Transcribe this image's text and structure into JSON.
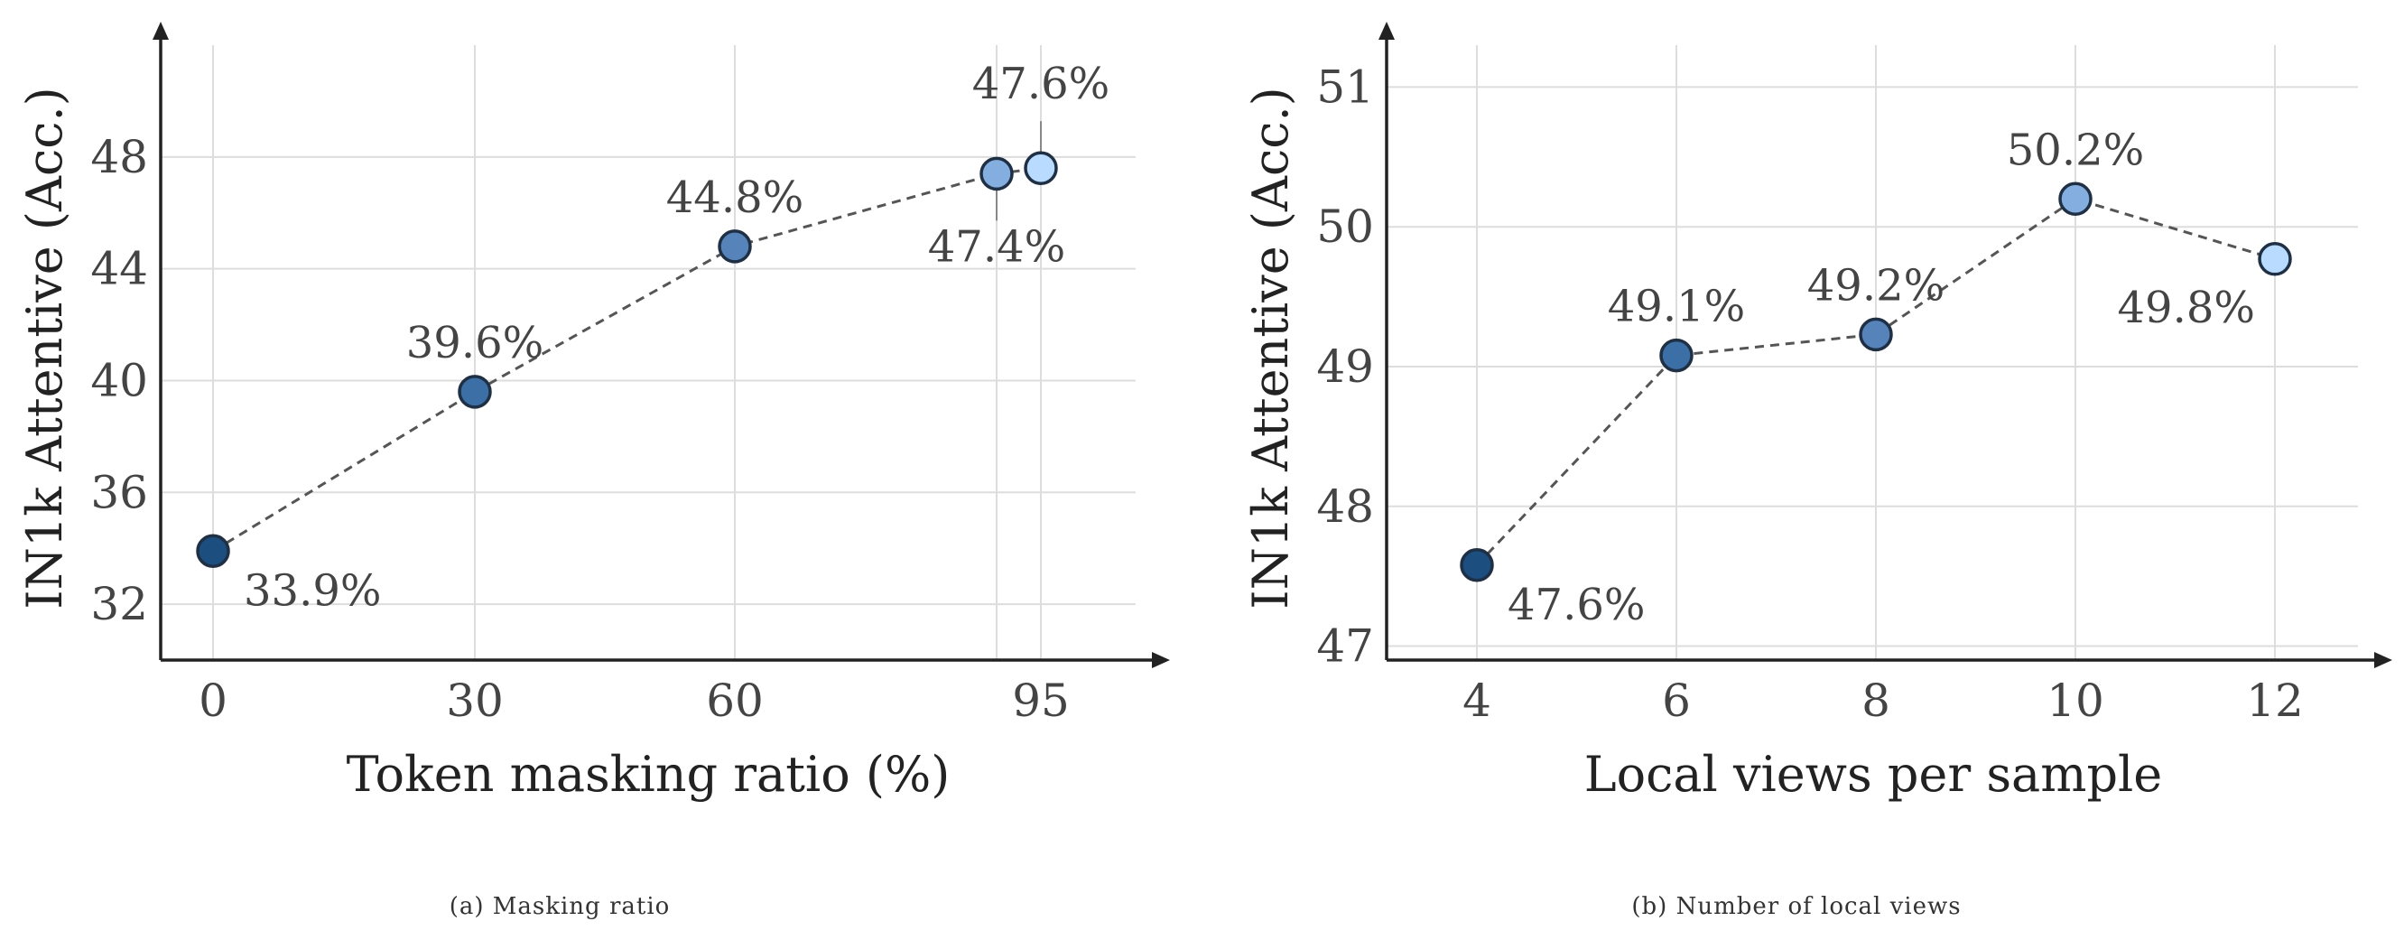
{
  "chart_data": [
    {
      "type": "scatter",
      "caption": "(a) Masking ratio",
      "xlabel": "Token masking ratio (%)",
      "ylabel": "IN1k Attentive (Acc.)",
      "ylim": [
        30,
        52
      ],
      "yticks": [
        "32",
        "36",
        "40",
        "44",
        "48"
      ],
      "grid": true,
      "connected": true,
      "points": [
        {
          "x": 0,
          "y": 33.9,
          "label": "33.9%",
          "color": "#1c4e7f",
          "label_pos": "below-right"
        },
        {
          "x": 30,
          "y": 39.6,
          "label": "39.6%",
          "color": "#3b6fa5",
          "label_pos": "above"
        },
        {
          "x": 60,
          "y": 44.8,
          "label": "44.8%",
          "color": "#5683ba",
          "label_pos": "above"
        },
        {
          "x": 90,
          "y": 47.4,
          "label": "47.4%",
          "color": "#84aee0",
          "label_pos": "below-leader"
        },
        {
          "x": 95,
          "y": 47.6,
          "label": "47.6%",
          "color": "#b9dbff",
          "label_pos": "above-leader"
        }
      ],
      "xticks": [
        {
          "value": 0,
          "label": "0"
        },
        {
          "value": 30,
          "label": "30"
        },
        {
          "value": 60,
          "label": "60"
        },
        {
          "value": 95,
          "label": "95"
        }
      ]
    },
    {
      "type": "scatter",
      "caption": "(b) Number of local views",
      "xlabel": "Local views per sample",
      "ylabel": "IN1k Attentive (Acc.)",
      "ylim": [
        46.9,
        51.3
      ],
      "yticks": [
        "47",
        "48",
        "49",
        "50",
        "51"
      ],
      "grid": true,
      "connected": true,
      "points": [
        {
          "x": 4,
          "y": 47.58,
          "label": "47.6%",
          "color": "#1c4e7f",
          "label_pos": "below-right"
        },
        {
          "x": 6,
          "y": 49.08,
          "label": "49.1%",
          "color": "#3b6fa5",
          "label_pos": "above"
        },
        {
          "x": 8,
          "y": 49.23,
          "label": "49.2%",
          "color": "#5683ba",
          "label_pos": "above"
        },
        {
          "x": 10,
          "y": 50.2,
          "label": "50.2%",
          "color": "#84aee0",
          "label_pos": "above"
        },
        {
          "x": 12,
          "y": 49.77,
          "label": "49.8%",
          "color": "#b9dbff",
          "label_pos": "below-left"
        }
      ],
      "xticks": [
        {
          "value": 4,
          "label": "4"
        },
        {
          "value": 6,
          "label": "6"
        },
        {
          "value": 8,
          "label": "8"
        },
        {
          "value": 10,
          "label": "10"
        },
        {
          "value": 12,
          "label": "12"
        }
      ]
    }
  ]
}
